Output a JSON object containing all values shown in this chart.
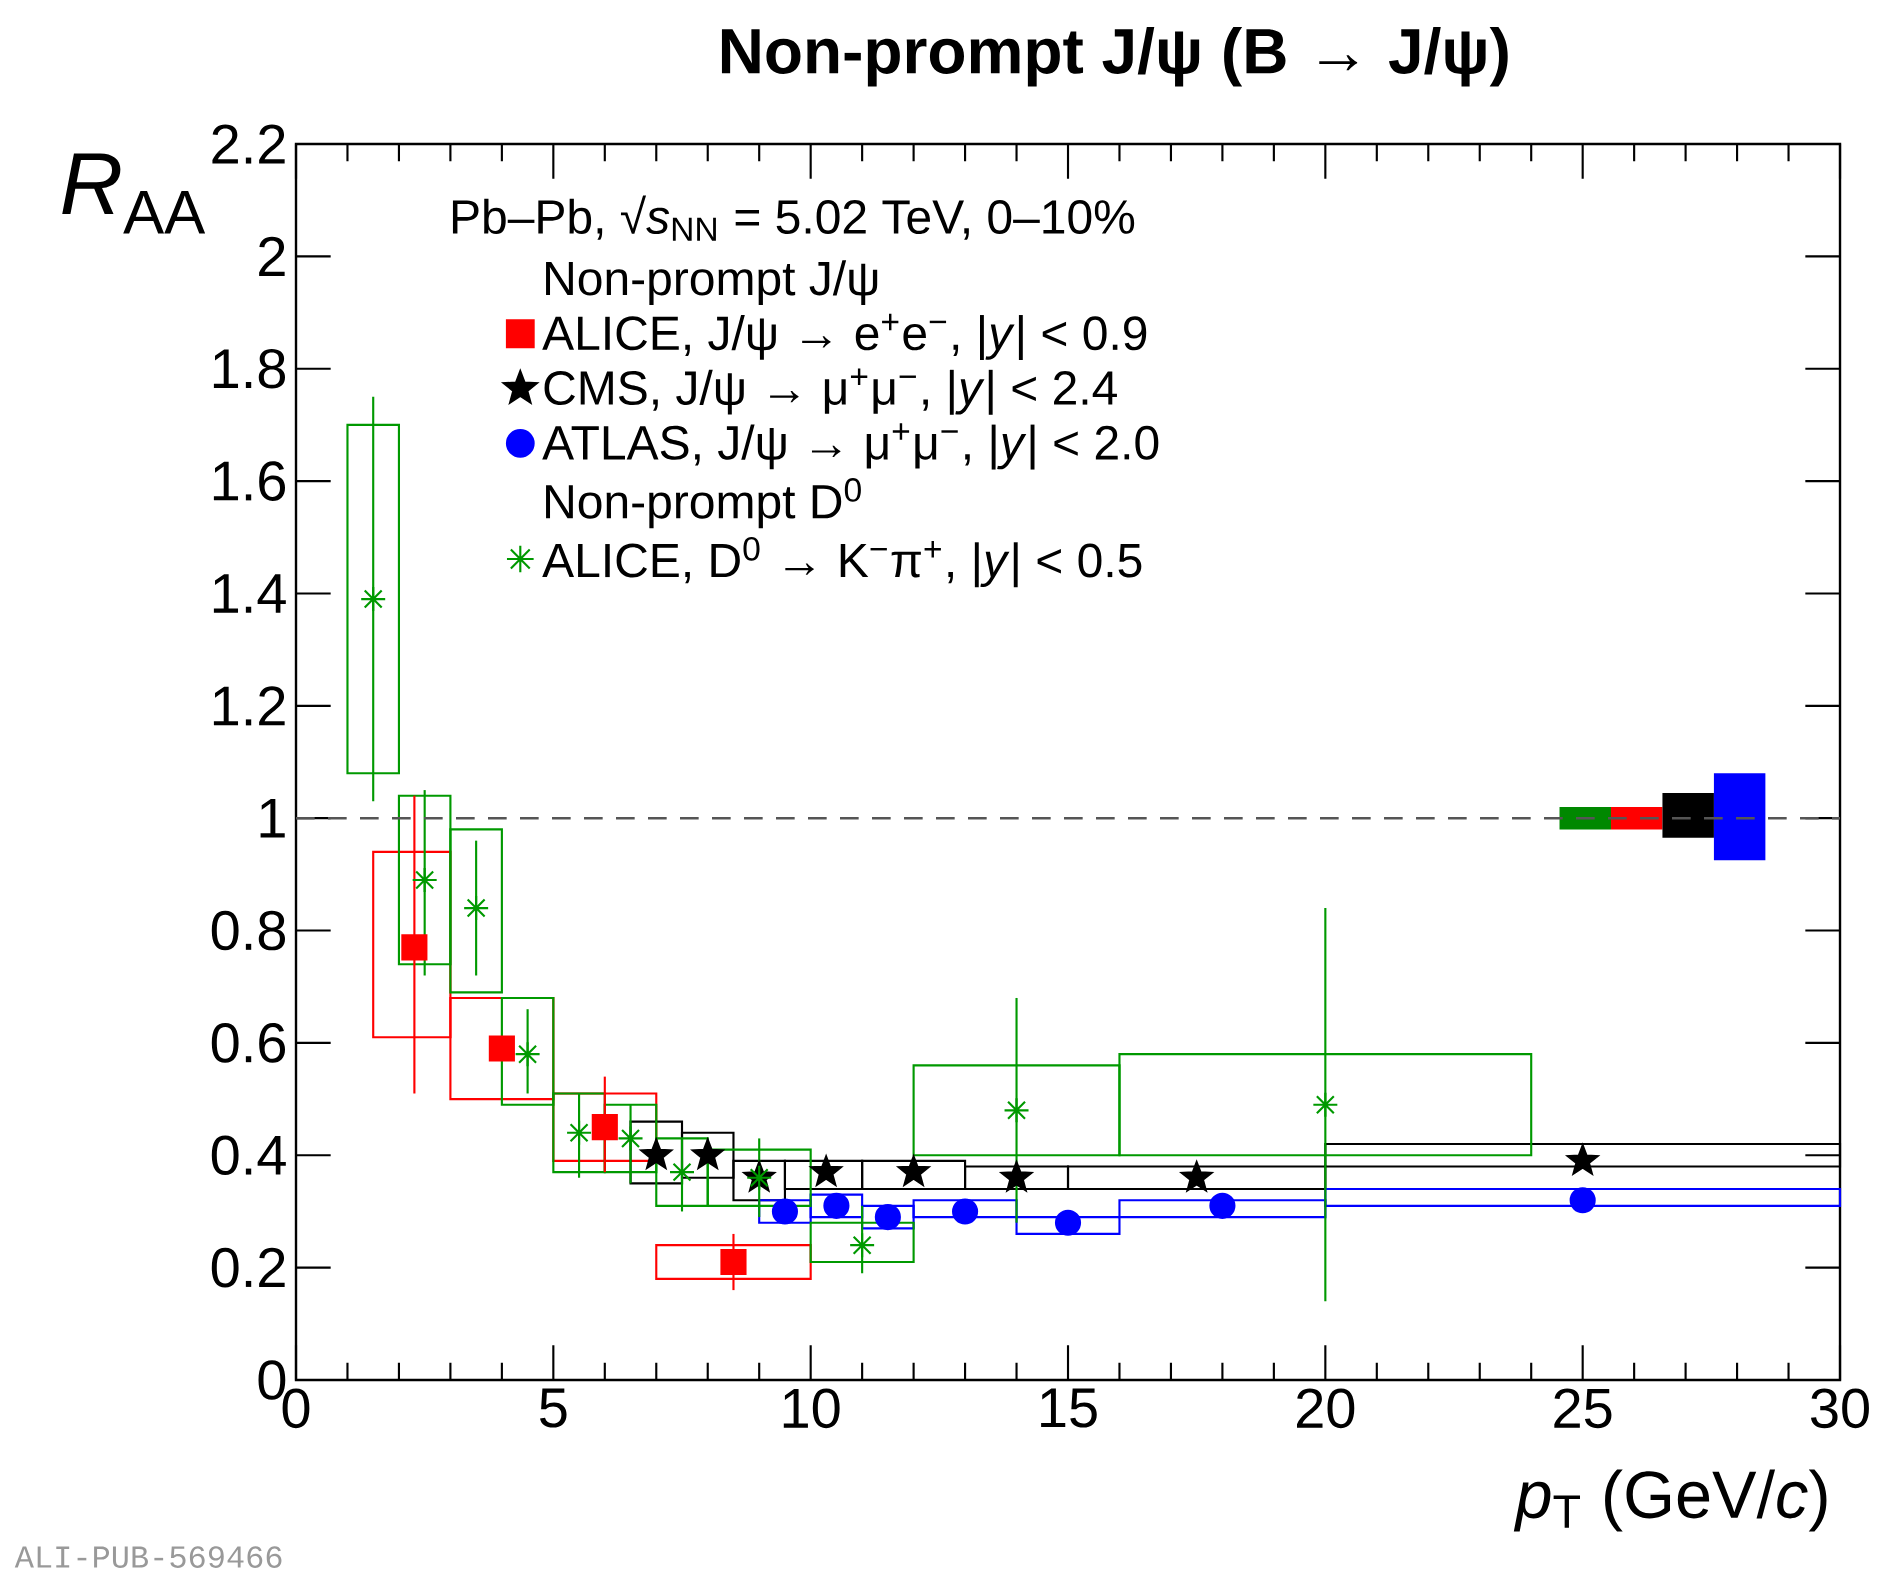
{
  "chart_data": {
    "type": "scatter",
    "title": "Non-prompt J/ψ (B → J/ψ)",
    "xlabel": "*p*$_{T}$ (GeV/*c*)",
    "ylabel": "*R*$_{AA}$",
    "legend_title": "Pb–Pb, √*s*$_{NN}$ = 5.02 TeV, 0–10%",
    "annotations": [
      "Non-prompt J/ψ",
      "Non-prompt D$^{0}$",
      "ALI-PUB-569466"
    ],
    "xlim": [
      0,
      30
    ],
    "xticks": [
      0,
      5,
      10,
      15,
      20,
      25,
      30
    ],
    "ylim": [
      0,
      2.2
    ],
    "yticks": [
      0,
      0.2,
      0.4,
      0.6,
      0.8,
      1,
      1.2,
      1.4,
      1.6,
      1.8,
      2,
      2.2
    ],
    "legend": "top",
    "grid": false,
    "ref_lines": [
      {
        "axis": "y",
        "value": 1,
        "color": "#555555",
        "line_style": "dashed"
      }
    ],
    "series": [
      {
        "type": "histogram",
        "color": "#ff0000",
        "bins": [
          1.5,
          3,
          5,
          7,
          10
        ],
        "base": [
          0.61,
          0.5,
          0.39,
          0.18
        ],
        "values": [
          0.33,
          0.18,
          0.12,
          0.06
        ]
      },
      {
        "type": "histogram",
        "color": "#000000",
        "bins": [
          6.5,
          7.5,
          8.5,
          9.5,
          11,
          13,
          15,
          20,
          30
        ],
        "base": [
          0.35,
          0.36,
          0.32,
          0.34,
          0.34,
          0.34,
          0.34,
          0.38
        ],
        "values": [
          0.11,
          0.08,
          0.07,
          0.05,
          0.05,
          0.04,
          0.04,
          0.04
        ]
      },
      {
        "type": "histogram",
        "color": "#0000ff",
        "bins": [
          9,
          10,
          11,
          12,
          14,
          16,
          20,
          30
        ],
        "base": [
          0.28,
          0.29,
          0.27,
          0.29,
          0.26,
          0.29,
          0.31
        ],
        "values": [
          0.04,
          0.04,
          0.04,
          0.03,
          0.03,
          0.03,
          0.03
        ]
      },
      {
        "type": "histogram",
        "color": "#009900",
        "bins": [
          1,
          2,
          3,
          4,
          5,
          6,
          7,
          8,
          10,
          12,
          16,
          24
        ],
        "base": [
          1.08,
          0.74,
          0.69,
          0.49,
          0.37,
          0.37,
          0.31,
          0.31,
          0.21,
          0.4,
          0.4
        ],
        "values": [
          0.62,
          0.3,
          0.29,
          0.19,
          0.14,
          0.12,
          0.12,
          0.1,
          0.07,
          0.16,
          0.18
        ]
      },
      {
        "name": "ALICE, J/ψ → e$^{+}$e$^{−}$, |*y*| < 0.9",
        "color": "#ff0000",
        "marker": "square",
        "x": [
          2.3,
          4,
          6,
          8.5
        ],
        "values": [
          0.77,
          0.59,
          0.45,
          0.21
        ],
        "errors": [
          [
            0.51,
            1.04
          ],
          null,
          [
            0.37,
            0.54
          ],
          [
            0.16,
            0.26
          ]
        ]
      },
      {
        "name": "CMS, J/ψ → μ$^{+}$μ$^{−}$, |*y*| < 2.4",
        "color": "#000000",
        "marker": "star",
        "x": [
          7,
          8,
          9,
          10.3,
          12,
          14,
          17.5,
          25
        ],
        "values": [
          0.4,
          0.4,
          0.36,
          0.37,
          0.37,
          0.36,
          0.36,
          0.39
        ]
      },
      {
        "name": "ATLAS, J/ψ → μ$^{+}$μ$^{−}$, |*y*| < 2.0",
        "color": "#0000ff",
        "marker": "circle",
        "x": [
          9.5,
          10.5,
          11.5,
          13,
          15,
          18,
          25
        ],
        "values": [
          0.3,
          0.31,
          0.29,
          0.3,
          0.28,
          0.31,
          0.32
        ]
      },
      {
        "name": "ALICE, D$^{0}$ → K$^{−}$π$^{+}$, |*y*| < 0.5",
        "color": "#009900",
        "marker": "cross",
        "x": [
          1.5,
          2.5,
          3.5,
          4.5,
          5.5,
          6.5,
          7.5,
          9,
          11,
          14,
          20
        ],
        "values": [
          1.39,
          0.89,
          0.84,
          0.58,
          0.44,
          0.43,
          0.37,
          0.36,
          0.24,
          0.48,
          0.49
        ],
        "errors": [
          [
            1.03,
            1.75
          ],
          [
            0.72,
            1.05
          ],
          [
            0.72,
            0.96
          ],
          [
            0.51,
            0.66
          ],
          [
            0.36,
            0.51
          ],
          [
            0.35,
            0.49
          ],
          [
            0.3,
            0.43
          ],
          [
            0.29,
            0.43
          ],
          [
            0.19,
            0.31
          ],
          [
            0.28,
            0.68
          ],
          [
            0.14,
            0.84
          ]
        ]
      },
      {
        "type": "bar",
        "x": [
          25.05,
          26.05,
          27.05,
          28.05
        ],
        "base": [
          0.98,
          0.98,
          0.965,
          0.925
        ],
        "values": [
          0.04,
          0.04,
          0.08,
          0.155
        ],
        "colors": [
          "#008800",
          "#ff0000",
          "#000000",
          "#0000ff"
        ]
      }
    ]
  }
}
